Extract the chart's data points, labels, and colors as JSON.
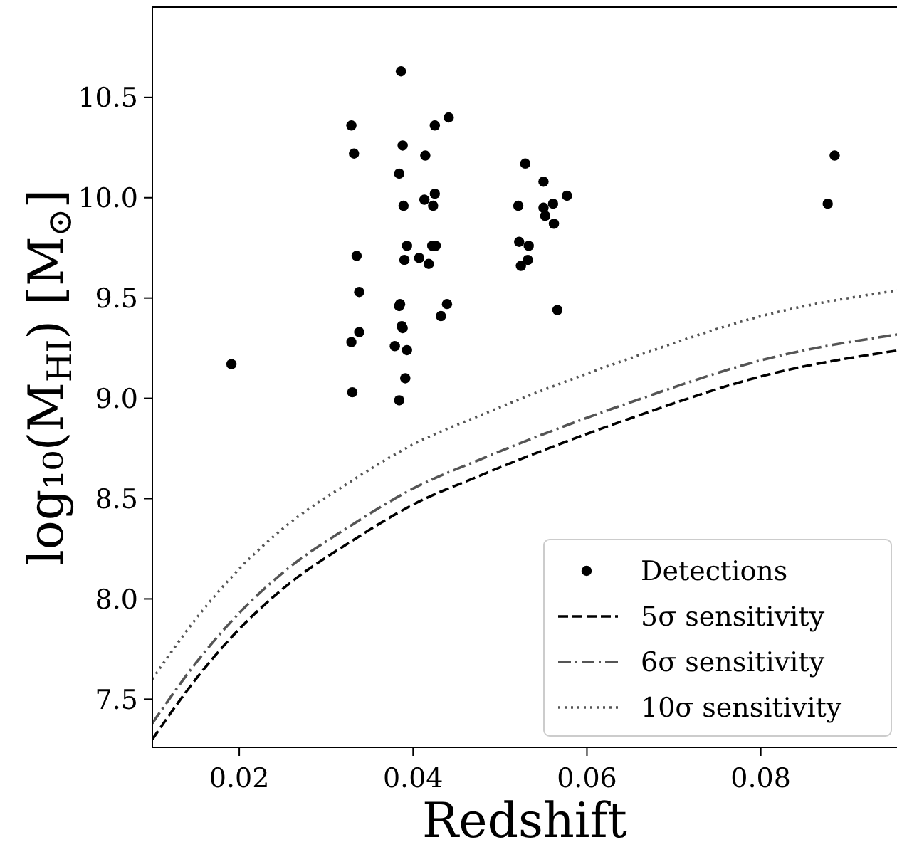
{
  "chart_data": {
    "type": "scatter",
    "xlabel": "Redshift",
    "ylabel": "log₁₀(M$_{HI}$) [M$_{⊙}$]",
    "xlim": [
      0.01,
      0.096
    ],
    "ylim": [
      7.26,
      10.95
    ],
    "xticks": [
      {
        "value": 0.02,
        "label": "0.02"
      },
      {
        "value": 0.04,
        "label": "0.04"
      },
      {
        "value": 0.06,
        "label": "0.06"
      },
      {
        "value": 0.08,
        "label": "0.08"
      }
    ],
    "yticks": [
      {
        "value": 7.5,
        "label": "7.5"
      },
      {
        "value": 8.0,
        "label": "8.0"
      },
      {
        "value": 8.5,
        "label": "8.5"
      },
      {
        "value": 9.0,
        "label": "9.0"
      },
      {
        "value": 9.5,
        "label": "9.5"
      },
      {
        "value": 10.0,
        "label": "10.0"
      },
      {
        "value": 10.5,
        "label": "10.5"
      }
    ],
    "grid": false,
    "legend": "bottom right",
    "series": [
      {
        "name": "Detections",
        "color": "#000000",
        "marker": "circle",
        "x": [
          0.0386,
          0.0329,
          0.0425,
          0.0441,
          0.0388,
          0.0332,
          0.0414,
          0.0384,
          0.0413,
          0.0425,
          0.0423,
          0.0389,
          0.0393,
          0.0422,
          0.0426,
          0.0335,
          0.039,
          0.0407,
          0.0418,
          0.0338,
          0.0385,
          0.0384,
          0.0439,
          0.0432,
          0.0387,
          0.0388,
          0.0338,
          0.0329,
          0.0379,
          0.0393,
          0.0191,
          0.0391,
          0.033,
          0.0384,
          0.055,
          0.0521,
          0.0577,
          0.055,
          0.0561,
          0.0552,
          0.0562,
          0.0522,
          0.0533,
          0.0532,
          0.0524,
          0.0566,
          0.0877,
          0.0529,
          0.0885
        ],
        "values": [
          10.63,
          10.36,
          10.36,
          10.4,
          10.26,
          10.22,
          10.21,
          10.12,
          9.99,
          10.02,
          9.96,
          9.96,
          9.76,
          9.76,
          9.76,
          9.71,
          9.69,
          9.7,
          9.67,
          9.53,
          9.47,
          9.46,
          9.47,
          9.41,
          9.36,
          9.35,
          9.33,
          9.28,
          9.26,
          9.24,
          9.17,
          9.1,
          9.03,
          8.99,
          10.08,
          9.96,
          10.01,
          9.95,
          9.97,
          9.91,
          9.87,
          9.78,
          9.76,
          9.69,
          9.66,
          9.44,
          9.97,
          10.17,
          10.21
        ]
      },
      {
        "name": "5σ sensitivity",
        "type": "line",
        "color": "#000000",
        "line_style": "dashed",
        "x": [
          0.01,
          0.015,
          0.02,
          0.025,
          0.033,
          0.04,
          0.048,
          0.065,
          0.081,
          0.096
        ],
        "values": [
          7.3,
          7.6,
          7.85,
          8.05,
          8.29,
          8.47,
          8.62,
          8.9,
          9.12,
          9.24
        ]
      },
      {
        "name": "6σ sensitivity",
        "type": "line",
        "color": "#555555",
        "line_style": "dashdot",
        "x": [
          0.01,
          0.015,
          0.02,
          0.025,
          0.033,
          0.04,
          0.048,
          0.065,
          0.081,
          0.096
        ],
        "values": [
          7.38,
          7.68,
          7.93,
          8.13,
          8.37,
          8.55,
          8.7,
          8.98,
          9.2,
          9.32
        ]
      },
      {
        "name": "10σ sensitivity",
        "type": "line",
        "color": "#555555",
        "line_style": "dotted",
        "x": [
          0.01,
          0.015,
          0.02,
          0.025,
          0.033,
          0.04,
          0.048,
          0.065,
          0.081,
          0.096
        ],
        "values": [
          7.6,
          7.9,
          8.15,
          8.35,
          8.59,
          8.77,
          8.92,
          9.2,
          9.42,
          9.54
        ]
      }
    ]
  }
}
